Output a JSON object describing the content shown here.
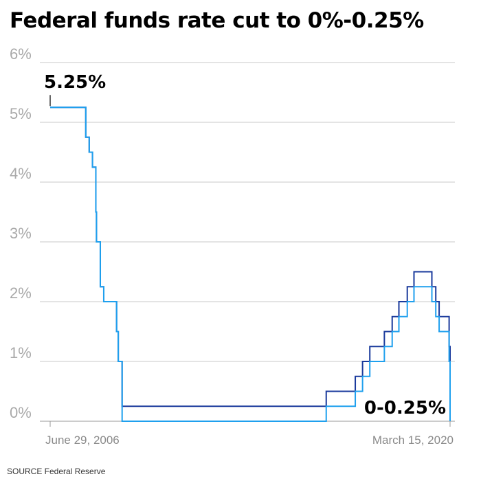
{
  "chart_data": {
    "type": "line",
    "title": "Federal funds rate cut to 0%-0.25%",
    "source": "SOURCE Federal Reserve",
    "step": true,
    "x_start": "2006-06-29",
    "x_end": "2020-03-15",
    "x_tick_labels": [
      {
        "x": "2006-06-29",
        "label": "June 29, 2006"
      },
      {
        "x": "2020-03-15",
        "label": "March 15, 2020"
      }
    ],
    "y_ticks": [
      0,
      1,
      2,
      3,
      4,
      5,
      6
    ],
    "y_tick_labels": [
      "0%",
      "1%",
      "2%",
      "3%",
      "4%",
      "5%",
      "6%"
    ],
    "ylim": [
      0,
      6
    ],
    "grid": true,
    "series": [
      {
        "color": "#1a3a9c",
        "points": [
          {
            "x": "2006-06-29",
            "y": 5.25
          },
          {
            "x": "2007-09-18",
            "y": 4.75
          },
          {
            "x": "2007-10-31",
            "y": 4.5
          },
          {
            "x": "2007-12-11",
            "y": 4.25
          },
          {
            "x": "2008-01-22",
            "y": 3.5
          },
          {
            "x": "2008-01-30",
            "y": 3.0
          },
          {
            "x": "2008-03-18",
            "y": 2.25
          },
          {
            "x": "2008-04-30",
            "y": 2.0
          },
          {
            "x": "2008-10-08",
            "y": 1.5
          },
          {
            "x": "2008-10-29",
            "y": 1.0
          },
          {
            "x": "2008-12-16",
            "y": 0.25
          },
          {
            "x": "2015-12-16",
            "y": 0.5
          },
          {
            "x": "2016-12-14",
            "y": 0.75
          },
          {
            "x": "2017-03-15",
            "y": 1.0
          },
          {
            "x": "2017-06-14",
            "y": 1.25
          },
          {
            "x": "2017-12-13",
            "y": 1.5
          },
          {
            "x": "2018-03-21",
            "y": 1.75
          },
          {
            "x": "2018-06-13",
            "y": 2.0
          },
          {
            "x": "2018-09-26",
            "y": 2.25
          },
          {
            "x": "2018-12-19",
            "y": 2.5
          },
          {
            "x": "2019-07-31",
            "y": 2.25
          },
          {
            "x": "2019-09-18",
            "y": 2.0
          },
          {
            "x": "2019-10-30",
            "y": 1.75
          },
          {
            "x": "2020-03-03",
            "y": 1.25
          },
          {
            "x": "2020-03-15",
            "y": 0.25
          }
        ]
      },
      {
        "color": "#1fa0ee",
        "points": [
          {
            "x": "2006-06-29",
            "y": 5.25
          },
          {
            "x": "2007-09-18",
            "y": 4.75
          },
          {
            "x": "2007-10-31",
            "y": 4.5
          },
          {
            "x": "2007-12-11",
            "y": 4.25
          },
          {
            "x": "2008-01-22",
            "y": 3.5
          },
          {
            "x": "2008-01-30",
            "y": 3.0
          },
          {
            "x": "2008-03-18",
            "y": 2.25
          },
          {
            "x": "2008-04-30",
            "y": 2.0
          },
          {
            "x": "2008-10-08",
            "y": 1.5
          },
          {
            "x": "2008-10-29",
            "y": 1.0
          },
          {
            "x": "2008-12-16",
            "y": 0.0
          },
          {
            "x": "2015-12-16",
            "y": 0.25
          },
          {
            "x": "2016-12-14",
            "y": 0.5
          },
          {
            "x": "2017-03-15",
            "y": 0.75
          },
          {
            "x": "2017-06-14",
            "y": 1.0
          },
          {
            "x": "2017-12-13",
            "y": 1.25
          },
          {
            "x": "2018-03-21",
            "y": 1.5
          },
          {
            "x": "2018-06-13",
            "y": 1.75
          },
          {
            "x": "2018-09-26",
            "y": 2.0
          },
          {
            "x": "2018-12-19",
            "y": 2.25
          },
          {
            "x": "2019-07-31",
            "y": 2.0
          },
          {
            "x": "2019-09-18",
            "y": 1.75
          },
          {
            "x": "2019-10-30",
            "y": 1.5
          },
          {
            "x": "2020-03-03",
            "y": 1.0
          },
          {
            "x": "2020-03-15",
            "y": 0.0
          }
        ]
      }
    ],
    "annotations": [
      {
        "label": "5.25%",
        "x": "2006-06-29",
        "y": 5.25
      },
      {
        "label": "0-0.25%",
        "x": "2020-03-15",
        "y": 0.0
      }
    ]
  }
}
